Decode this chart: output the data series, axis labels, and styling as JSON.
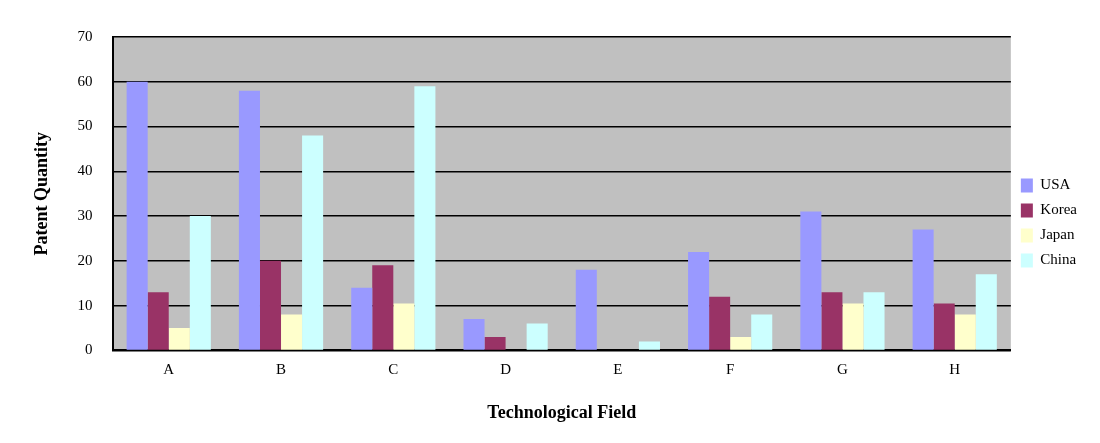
{
  "chart_data": {
    "type": "bar",
    "xlabel": "Technological Field",
    "ylabel": "Patent Quantity",
    "categories": [
      "A",
      "B",
      "C",
      "D",
      "E",
      "F",
      "G",
      "H"
    ],
    "series": [
      {
        "name": "USA",
        "color": "#9999ff",
        "values": [
          60,
          58,
          14,
          7,
          18,
          22,
          31,
          27
        ]
      },
      {
        "name": "Korea",
        "color": "#993366",
        "values": [
          13,
          20,
          19,
          3,
          0,
          12,
          13,
          10.5
        ]
      },
      {
        "name": "Japan",
        "color": "#ffffcc",
        "values": [
          5,
          8,
          10.5,
          0,
          0,
          3,
          10.5,
          8
        ]
      },
      {
        "name": "China",
        "color": "#ccffff",
        "values": [
          30,
          48,
          59,
          6,
          2,
          8,
          13,
          17
        ]
      }
    ],
    "ylim": [
      0,
      70
    ],
    "yticks": [
      0,
      10,
      20,
      30,
      40,
      50,
      60,
      70
    ],
    "grid": "y",
    "legend": "right"
  }
}
